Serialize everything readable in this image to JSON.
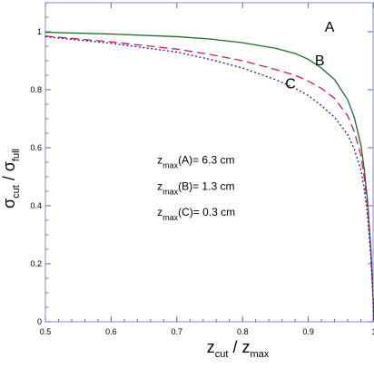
{
  "chart_data": {
    "type": "line",
    "xlabel": {
      "main": "z",
      "sub": "cut",
      "sep": " / ",
      "main2": "z",
      "sub2": "max"
    },
    "ylabel": {
      "main": "σ",
      "sub": "cut",
      "sep": " / ",
      "main2": "σ",
      "sub2": "full"
    },
    "xlim": [
      0.5,
      1.0
    ],
    "ylim": [
      0,
      1.1
    ],
    "x_ticks": [
      0.5,
      0.6,
      0.7,
      0.8,
      0.9,
      1
    ],
    "y_ticks": [
      0,
      0.2,
      0.4,
      0.6,
      0.8,
      1
    ],
    "grid": false,
    "series": [
      {
        "name": "A",
        "color": "#1e6b28",
        "dash": "solid",
        "x": [
          0.5,
          0.6,
          0.7,
          0.75,
          0.8,
          0.85,
          0.88,
          0.9,
          0.92,
          0.94,
          0.96,
          0.97,
          0.98,
          0.985,
          0.99,
          0.995,
          0.998,
          1.0
        ],
        "y": [
          0.998,
          0.992,
          0.983,
          0.975,
          0.962,
          0.943,
          0.925,
          0.905,
          0.875,
          0.835,
          0.765,
          0.705,
          0.61,
          0.53,
          0.42,
          0.26,
          0.12,
          0.0
        ]
      },
      {
        "name": "B",
        "color": "#d6185c",
        "dash": "dashed",
        "x": [
          0.5,
          0.6,
          0.7,
          0.75,
          0.8,
          0.85,
          0.88,
          0.9,
          0.92,
          0.94,
          0.96,
          0.97,
          0.98,
          0.985,
          0.99,
          0.995,
          0.998,
          1.0
        ],
        "y": [
          0.985,
          0.965,
          0.94,
          0.922,
          0.9,
          0.87,
          0.85,
          0.83,
          0.805,
          0.77,
          0.71,
          0.655,
          0.575,
          0.5,
          0.4,
          0.25,
          0.115,
          0.0
        ]
      },
      {
        "name": "C",
        "color": "#1a1ab8",
        "dash": "dotted",
        "x": [
          0.5,
          0.6,
          0.7,
          0.75,
          0.8,
          0.85,
          0.88,
          0.9,
          0.92,
          0.94,
          0.96,
          0.97,
          0.98,
          0.985,
          0.99,
          0.995,
          0.998,
          1.0
        ],
        "y": [
          0.983,
          0.96,
          0.93,
          0.905,
          0.875,
          0.835,
          0.805,
          0.78,
          0.745,
          0.705,
          0.645,
          0.595,
          0.525,
          0.46,
          0.37,
          0.23,
          0.105,
          0.0
        ]
      }
    ],
    "curve_labels": [
      {
        "text": "A",
        "x": 0.925,
        "y": 1.0
      },
      {
        "text": "B",
        "x": 0.91,
        "y": 0.885
      },
      {
        "text": "C",
        "x": 0.865,
        "y": 0.805
      }
    ],
    "annotations": [
      {
        "main": "z",
        "sub": "max",
        "text": "(A)=  6.3 cm",
        "x": 0.67,
        "y": 0.545
      },
      {
        "main": "z",
        "sub": "max",
        "text": "(B)=  1.3 cm",
        "x": 0.67,
        "y": 0.455
      },
      {
        "main": "z",
        "sub": "max",
        "text": "(C)=  0.3 cm",
        "x": 0.67,
        "y": 0.365
      }
    ],
    "colors": {
      "axis": "#6666cc",
      "frame": "#8888cc",
      "background": "#ffffff"
    }
  }
}
